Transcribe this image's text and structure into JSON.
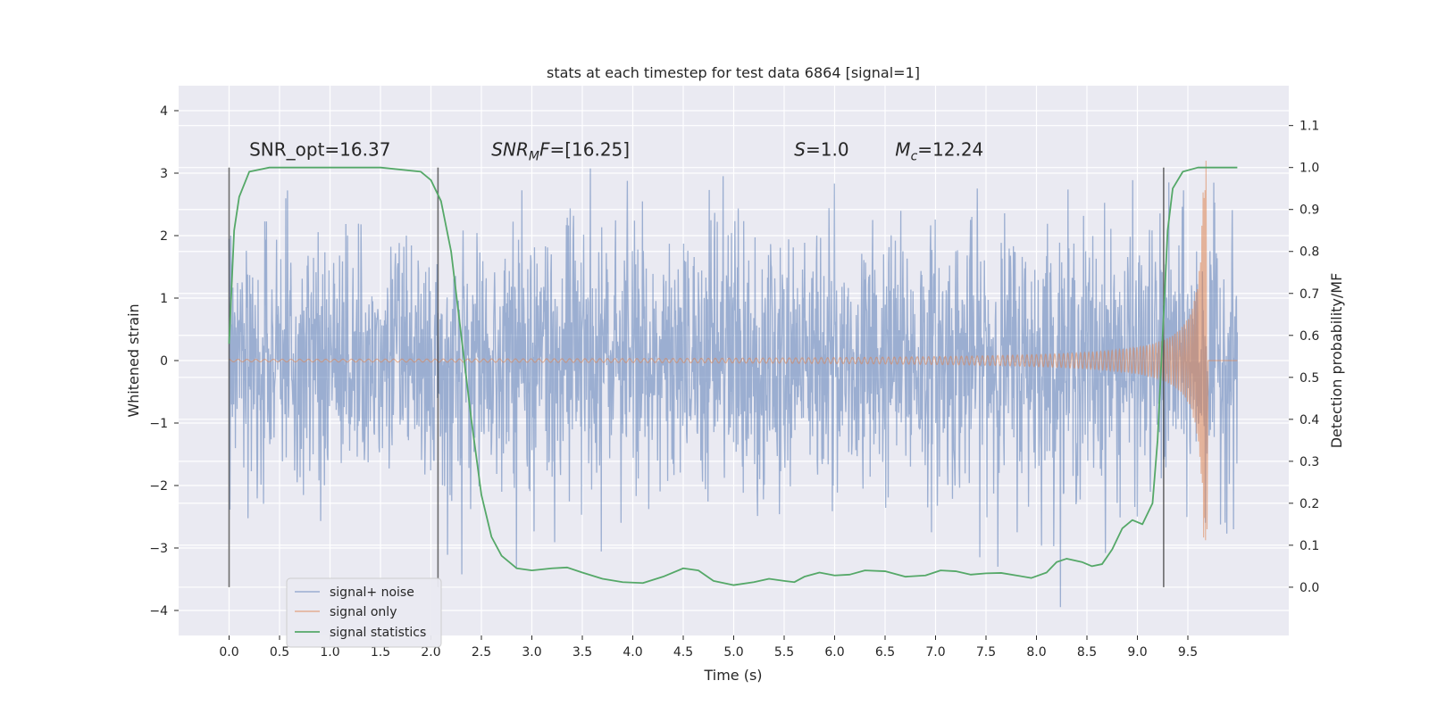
{
  "chart_data": {
    "type": "line",
    "title": "stats at each timestep for test data 6864 [signal=1]",
    "xlabel": "Time (s)",
    "ylabel": "Whitened strain",
    "y2label": "Detection probability/MF",
    "xlim": [
      -0.5,
      10.5
    ],
    "ylim": [
      -4.4,
      4.4
    ],
    "y2lim": [
      -0.115,
      1.195
    ],
    "x_ticks": [
      "0.0",
      "0.5",
      "1.0",
      "1.5",
      "2.0",
      "2.5",
      "3.0",
      "3.5",
      "4.0",
      "4.5",
      "5.0",
      "5.5",
      "6.0",
      "6.5",
      "7.0",
      "7.5",
      "8.0",
      "8.5",
      "9.0",
      "9.5"
    ],
    "x_tick_values": [
      0,
      0.5,
      1,
      1.5,
      2,
      2.5,
      3,
      3.5,
      4,
      4.5,
      5,
      5.5,
      6,
      6.5,
      7,
      7.5,
      8,
      8.5,
      9,
      9.5
    ],
    "y_ticks": [
      "−4",
      "−3",
      "−2",
      "−1",
      "0",
      "1",
      "2",
      "3",
      "4"
    ],
    "y_tick_values": [
      -4,
      -3,
      -2,
      -1,
      0,
      1,
      2,
      3,
      4
    ],
    "y2_ticks": [
      "0.0",
      "0.1",
      "0.2",
      "0.3",
      "0.4",
      "0.5",
      "0.6",
      "0.7",
      "0.8",
      "0.9",
      "1.0",
      "1.1"
    ],
    "y2_tick_values": [
      0,
      0.1,
      0.2,
      0.3,
      0.4,
      0.5,
      0.6,
      0.7,
      0.8,
      0.9,
      1.0,
      1.1
    ],
    "grid": true,
    "legend_position": "lower-left",
    "series": [
      {
        "name": "signal+ noise",
        "color": "#4c72b0",
        "axis": "left",
        "kind": "noise-trace",
        "x_range": [
          0,
          9.99
        ],
        "typical_amplitude": 2.5,
        "max_abs": 4.0
      },
      {
        "name": "signal only",
        "color": "#dd8452",
        "axis": "left",
        "kind": "chirp",
        "t_merge": 9.68,
        "amplitude_at_start": 0.02,
        "peak_max": 3.2,
        "peak_min": -2.7
      },
      {
        "name": "signal statistics",
        "color": "#55a868",
        "axis": "right",
        "points": [
          [
            0.0,
            0.58
          ],
          [
            0.05,
            0.85
          ],
          [
            0.1,
            0.93
          ],
          [
            0.2,
            0.99
          ],
          [
            0.4,
            1.0
          ],
          [
            1.0,
            1.0
          ],
          [
            1.5,
            1.0
          ],
          [
            1.9,
            0.99
          ],
          [
            2.0,
            0.97
          ],
          [
            2.1,
            0.92
          ],
          [
            2.2,
            0.8
          ],
          [
            2.3,
            0.6
          ],
          [
            2.4,
            0.4
          ],
          [
            2.5,
            0.22
          ],
          [
            2.6,
            0.12
          ],
          [
            2.7,
            0.075
          ],
          [
            2.85,
            0.045
          ],
          [
            3.0,
            0.04
          ],
          [
            3.2,
            0.045
          ],
          [
            3.35,
            0.047
          ],
          [
            3.5,
            0.035
          ],
          [
            3.7,
            0.02
          ],
          [
            3.9,
            0.012
          ],
          [
            4.1,
            0.01
          ],
          [
            4.3,
            0.025
          ],
          [
            4.5,
            0.045
          ],
          [
            4.65,
            0.04
          ],
          [
            4.8,
            0.015
          ],
          [
            5.0,
            0.005
          ],
          [
            5.2,
            0.012
          ],
          [
            5.35,
            0.02
          ],
          [
            5.5,
            0.015
          ],
          [
            5.6,
            0.012
          ],
          [
            5.7,
            0.025
          ],
          [
            5.85,
            0.035
          ],
          [
            6.0,
            0.028
          ],
          [
            6.15,
            0.03
          ],
          [
            6.3,
            0.04
          ],
          [
            6.5,
            0.038
          ],
          [
            6.7,
            0.025
          ],
          [
            6.9,
            0.028
          ],
          [
            7.05,
            0.04
          ],
          [
            7.2,
            0.038
          ],
          [
            7.35,
            0.03
          ],
          [
            7.5,
            0.033
          ],
          [
            7.65,
            0.034
          ],
          [
            7.8,
            0.028
          ],
          [
            7.95,
            0.022
          ],
          [
            8.1,
            0.035
          ],
          [
            8.2,
            0.06
          ],
          [
            8.3,
            0.068
          ],
          [
            8.45,
            0.06
          ],
          [
            8.55,
            0.05
          ],
          [
            8.65,
            0.055
          ],
          [
            8.75,
            0.09
          ],
          [
            8.85,
            0.14
          ],
          [
            8.95,
            0.16
          ],
          [
            9.05,
            0.15
          ],
          [
            9.15,
            0.2
          ],
          [
            9.2,
            0.35
          ],
          [
            9.25,
            0.6
          ],
          [
            9.3,
            0.85
          ],
          [
            9.35,
            0.95
          ],
          [
            9.45,
            0.99
          ],
          [
            9.6,
            1.0
          ],
          [
            9.99,
            1.0
          ]
        ]
      }
    ],
    "vlines": [
      0.0,
      2.07,
      9.26
    ],
    "annotations": [
      {
        "id": "snr_opt",
        "x": 0.2,
        "y": 3.28,
        "parts": [
          {
            "t": "SNR_opt=16.37",
            "style": "normal"
          }
        ]
      },
      {
        "id": "snr_mf",
        "x": 2.6,
        "y": 3.28,
        "parts": [
          {
            "t": "SNR",
            "style": "italic"
          },
          {
            "t": "M",
            "style": "italic-sub"
          },
          {
            "t": "F",
            "style": "italic"
          },
          {
            "t": "=[16.25]",
            "style": "normal"
          }
        ]
      },
      {
        "id": "s_val",
        "x": 5.6,
        "y": 3.28,
        "parts": [
          {
            "t": "S",
            "style": "italic"
          },
          {
            "t": "=1.0",
            "style": "normal"
          }
        ]
      },
      {
        "id": "mc_val",
        "x": 6.6,
        "y": 3.28,
        "parts": [
          {
            "t": "M",
            "style": "italic"
          },
          {
            "t": "c",
            "style": "italic-sub"
          },
          {
            "t": "=12.24",
            "style": "normal"
          }
        ]
      }
    ]
  }
}
